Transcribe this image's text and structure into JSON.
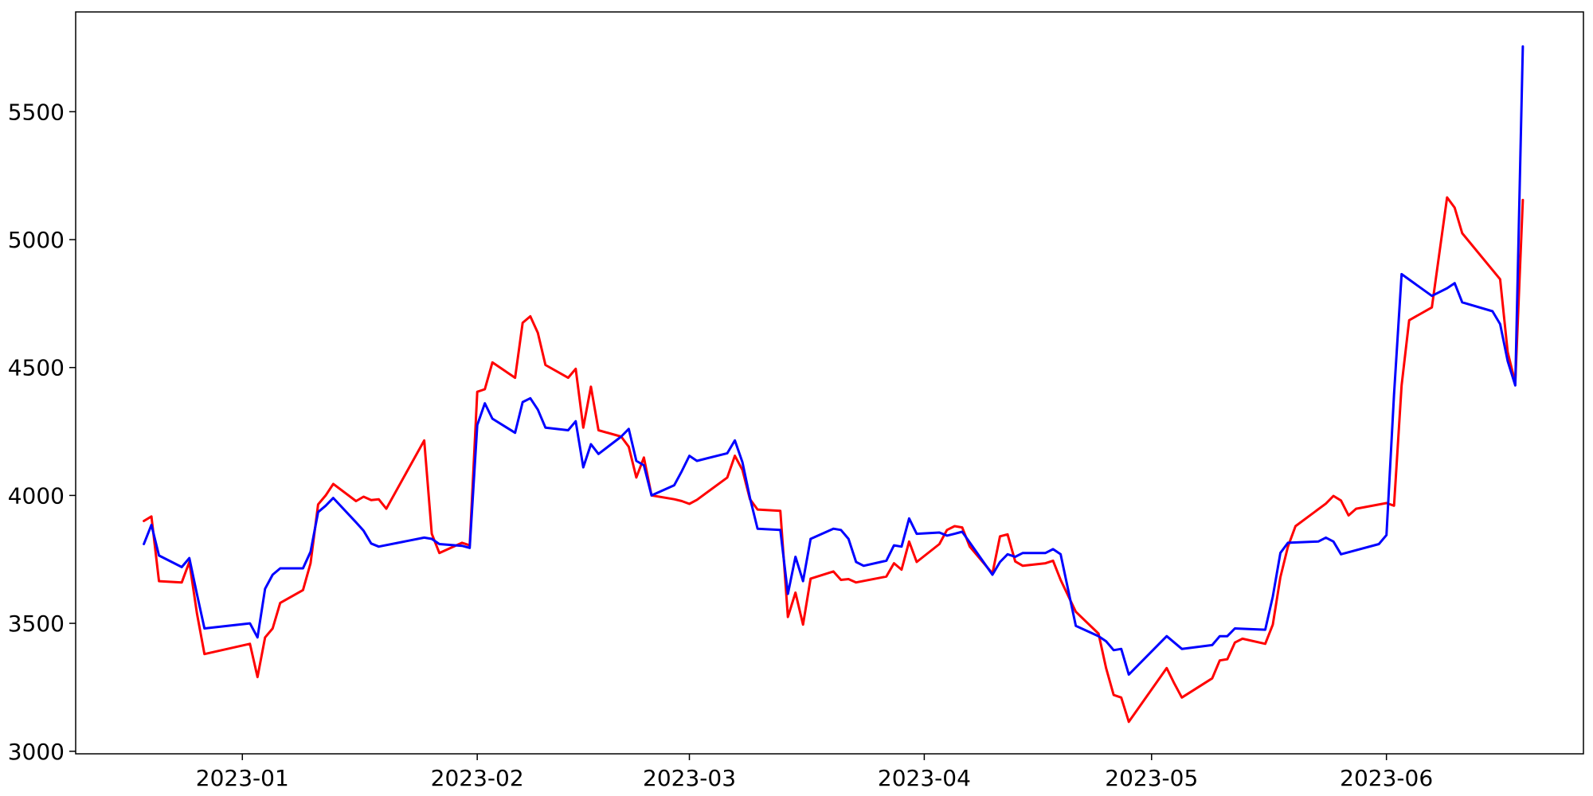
{
  "chart_data": {
    "type": "line",
    "title": "",
    "xlabel": "",
    "ylabel": "",
    "grid": false,
    "xlim": [
      "2022-12-10",
      "2023-06-27"
    ],
    "ylim": [
      2990,
      5890
    ],
    "x_ticks": [
      {
        "date": "2023-01-01",
        "label": "2023-01"
      },
      {
        "date": "2023-02-01",
        "label": "2023-02"
      },
      {
        "date": "2023-03-01",
        "label": "2023-03"
      },
      {
        "date": "2023-04-01",
        "label": "2023-04"
      },
      {
        "date": "2023-05-01",
        "label": "2023-05"
      },
      {
        "date": "2023-06-01",
        "label": "2023-06"
      }
    ],
    "y_ticks": [
      {
        "value": 3000,
        "label": "3000"
      },
      {
        "value": 3500,
        "label": "3500"
      },
      {
        "value": 4000,
        "label": "4000"
      },
      {
        "value": 4500,
        "label": "4500"
      },
      {
        "value": 5000,
        "label": "5000"
      },
      {
        "value": 5500,
        "label": "5500"
      }
    ],
    "series": [
      {
        "color": "#ff0000",
        "points": [
          [
            "2022-12-19",
            3900
          ],
          [
            "2022-12-20",
            3918
          ],
          [
            "2022-12-21",
            3665
          ],
          [
            "2022-12-24",
            3660
          ],
          [
            "2022-12-25",
            3740
          ],
          [
            "2022-12-26",
            3540
          ],
          [
            "2022-12-27",
            3380
          ],
          [
            "2023-01-02",
            3420
          ],
          [
            "2023-01-03",
            3290
          ],
          [
            "2023-01-04",
            3445
          ],
          [
            "2023-01-05",
            3480
          ],
          [
            "2023-01-06",
            3580
          ],
          [
            "2023-01-09",
            3630
          ],
          [
            "2023-01-10",
            3735
          ],
          [
            "2023-01-11",
            3965
          ],
          [
            "2023-01-12",
            4000
          ],
          [
            "2023-01-13",
            4045
          ],
          [
            "2023-01-16",
            3978
          ],
          [
            "2023-01-17",
            3995
          ],
          [
            "2023-01-18",
            3982
          ],
          [
            "2023-01-19",
            3985
          ],
          [
            "2023-01-20",
            3948
          ],
          [
            "2023-01-25",
            4215
          ],
          [
            "2023-01-26",
            3850
          ],
          [
            "2023-01-27",
            3775
          ],
          [
            "2023-01-30",
            3815
          ],
          [
            "2023-01-31",
            3805
          ],
          [
            "2023-02-01",
            4405
          ],
          [
            "2023-02-02",
            4415
          ],
          [
            "2023-02-03",
            4520
          ],
          [
            "2023-02-06",
            4460
          ],
          [
            "2023-02-07",
            4675
          ],
          [
            "2023-02-08",
            4700
          ],
          [
            "2023-02-09",
            4635
          ],
          [
            "2023-02-10",
            4510
          ],
          [
            "2023-02-13",
            4460
          ],
          [
            "2023-02-14",
            4495
          ],
          [
            "2023-02-15",
            4265
          ],
          [
            "2023-02-16",
            4425
          ],
          [
            "2023-02-17",
            4255
          ],
          [
            "2023-02-20",
            4230
          ],
          [
            "2023-02-21",
            4190
          ],
          [
            "2023-02-22",
            4070
          ],
          [
            "2023-02-23",
            4148
          ],
          [
            "2023-02-24",
            4000
          ],
          [
            "2023-02-27",
            3985
          ],
          [
            "2023-02-28",
            3978
          ],
          [
            "2023-03-01",
            3967
          ],
          [
            "2023-03-02",
            3983
          ],
          [
            "2023-03-06",
            4070
          ],
          [
            "2023-03-07",
            4155
          ],
          [
            "2023-03-08",
            4100
          ],
          [
            "2023-03-09",
            3985
          ],
          [
            "2023-03-10",
            3945
          ],
          [
            "2023-03-13",
            3940
          ],
          [
            "2023-03-14",
            3525
          ],
          [
            "2023-03-15",
            3620
          ],
          [
            "2023-03-16",
            3495
          ],
          [
            "2023-03-17",
            3675
          ],
          [
            "2023-03-20",
            3703
          ],
          [
            "2023-03-21",
            3670
          ],
          [
            "2023-03-22",
            3673
          ],
          [
            "2023-03-23",
            3660
          ],
          [
            "2023-03-27",
            3683
          ],
          [
            "2023-03-28",
            3735
          ],
          [
            "2023-03-29",
            3710
          ],
          [
            "2023-03-30",
            3820
          ],
          [
            "2023-03-31",
            3740
          ],
          [
            "2023-04-03",
            3810
          ],
          [
            "2023-04-04",
            3865
          ],
          [
            "2023-04-05",
            3880
          ],
          [
            "2023-04-06",
            3875
          ],
          [
            "2023-04-07",
            3800
          ],
          [
            "2023-04-10",
            3695
          ],
          [
            "2023-04-11",
            3840
          ],
          [
            "2023-04-12",
            3848
          ],
          [
            "2023-04-13",
            3742
          ],
          [
            "2023-04-14",
            3725
          ],
          [
            "2023-04-17",
            3735
          ],
          [
            "2023-04-18",
            3745
          ],
          [
            "2023-04-19",
            3670
          ],
          [
            "2023-04-21",
            3545
          ],
          [
            "2023-04-24",
            3460
          ],
          [
            "2023-04-25",
            3325
          ],
          [
            "2023-04-26",
            3220
          ],
          [
            "2023-04-27",
            3210
          ],
          [
            "2023-04-28",
            3115
          ],
          [
            "2023-05-03",
            3325
          ],
          [
            "2023-05-04",
            3265
          ],
          [
            "2023-05-05",
            3210
          ],
          [
            "2023-05-09",
            3285
          ],
          [
            "2023-05-10",
            3355
          ],
          [
            "2023-05-11",
            3360
          ],
          [
            "2023-05-12",
            3425
          ],
          [
            "2023-05-13",
            3440
          ],
          [
            "2023-05-16",
            3420
          ],
          [
            "2023-05-17",
            3495
          ],
          [
            "2023-05-18",
            3680
          ],
          [
            "2023-05-19",
            3800
          ],
          [
            "2023-05-20",
            3880
          ],
          [
            "2023-05-24",
            3968
          ],
          [
            "2023-05-25",
            3998
          ],
          [
            "2023-05-26",
            3980
          ],
          [
            "2023-05-27",
            3922
          ],
          [
            "2023-05-28",
            3948
          ],
          [
            "2023-06-01",
            3970
          ],
          [
            "2023-06-02",
            3960
          ],
          [
            "2023-06-03",
            4430
          ],
          [
            "2023-06-04",
            4685
          ],
          [
            "2023-06-07",
            4735
          ],
          [
            "2023-06-09",
            5165
          ],
          [
            "2023-06-10",
            5125
          ],
          [
            "2023-06-11",
            5025
          ],
          [
            "2023-06-16",
            4845
          ],
          [
            "2023-06-17",
            4560
          ],
          [
            "2023-06-18",
            4440
          ],
          [
            "2023-06-19",
            5155
          ]
        ]
      },
      {
        "color": "#0000ff",
        "points": [
          [
            "2022-12-19",
            3810
          ],
          [
            "2022-12-20",
            3885
          ],
          [
            "2022-12-21",
            3765
          ],
          [
            "2022-12-24",
            3720
          ],
          [
            "2022-12-25",
            3755
          ],
          [
            "2022-12-26",
            3615
          ],
          [
            "2022-12-27",
            3480
          ],
          [
            "2023-01-02",
            3500
          ],
          [
            "2023-01-03",
            3445
          ],
          [
            "2023-01-04",
            3635
          ],
          [
            "2023-01-05",
            3690
          ],
          [
            "2023-01-06",
            3715
          ],
          [
            "2023-01-09",
            3715
          ],
          [
            "2023-01-10",
            3780
          ],
          [
            "2023-01-11",
            3935
          ],
          [
            "2023-01-12",
            3960
          ],
          [
            "2023-01-13",
            3990
          ],
          [
            "2023-01-16",
            3895
          ],
          [
            "2023-01-17",
            3862
          ],
          [
            "2023-01-18",
            3812
          ],
          [
            "2023-01-19",
            3800
          ],
          [
            "2023-01-25",
            3835
          ],
          [
            "2023-01-26",
            3830
          ],
          [
            "2023-01-27",
            3810
          ],
          [
            "2023-01-30",
            3803
          ],
          [
            "2023-01-31",
            3795
          ],
          [
            "2023-02-01",
            4275
          ],
          [
            "2023-02-02",
            4360
          ],
          [
            "2023-02-03",
            4300
          ],
          [
            "2023-02-06",
            4245
          ],
          [
            "2023-02-07",
            4365
          ],
          [
            "2023-02-08",
            4380
          ],
          [
            "2023-02-09",
            4335
          ],
          [
            "2023-02-10",
            4265
          ],
          [
            "2023-02-13",
            4255
          ],
          [
            "2023-02-14",
            4290
          ],
          [
            "2023-02-15",
            4110
          ],
          [
            "2023-02-16",
            4200
          ],
          [
            "2023-02-17",
            4162
          ],
          [
            "2023-02-20",
            4230
          ],
          [
            "2023-02-21",
            4260
          ],
          [
            "2023-02-22",
            4135
          ],
          [
            "2023-02-23",
            4118
          ],
          [
            "2023-02-24",
            4000
          ],
          [
            "2023-02-27",
            4040
          ],
          [
            "2023-02-28",
            4095
          ],
          [
            "2023-03-01",
            4155
          ],
          [
            "2023-03-02",
            4135
          ],
          [
            "2023-03-06",
            4165
          ],
          [
            "2023-03-07",
            4215
          ],
          [
            "2023-03-08",
            4130
          ],
          [
            "2023-03-09",
            3990
          ],
          [
            "2023-03-10",
            3870
          ],
          [
            "2023-03-13",
            3865
          ],
          [
            "2023-03-14",
            3615
          ],
          [
            "2023-03-15",
            3760
          ],
          [
            "2023-03-16",
            3665
          ],
          [
            "2023-03-17",
            3830
          ],
          [
            "2023-03-20",
            3870
          ],
          [
            "2023-03-21",
            3865
          ],
          [
            "2023-03-22",
            3830
          ],
          [
            "2023-03-23",
            3740
          ],
          [
            "2023-03-24",
            3725
          ],
          [
            "2023-03-27",
            3745
          ],
          [
            "2023-03-28",
            3805
          ],
          [
            "2023-03-29",
            3800
          ],
          [
            "2023-03-30",
            3910
          ],
          [
            "2023-03-31",
            3850
          ],
          [
            "2023-04-03",
            3855
          ],
          [
            "2023-04-04",
            3843
          ],
          [
            "2023-04-05",
            3850
          ],
          [
            "2023-04-06",
            3858
          ],
          [
            "2023-04-10",
            3690
          ],
          [
            "2023-04-11",
            3740
          ],
          [
            "2023-04-12",
            3770
          ],
          [
            "2023-04-13",
            3760
          ],
          [
            "2023-04-14",
            3775
          ],
          [
            "2023-04-17",
            3775
          ],
          [
            "2023-04-18",
            3790
          ],
          [
            "2023-04-19",
            3770
          ],
          [
            "2023-04-21",
            3490
          ],
          [
            "2023-04-24",
            3450
          ],
          [
            "2023-04-25",
            3430
          ],
          [
            "2023-04-26",
            3395
          ],
          [
            "2023-04-27",
            3400
          ],
          [
            "2023-04-28",
            3300
          ],
          [
            "2023-05-03",
            3450
          ],
          [
            "2023-05-05",
            3400
          ],
          [
            "2023-05-09",
            3415
          ],
          [
            "2023-05-10",
            3450
          ],
          [
            "2023-05-11",
            3450
          ],
          [
            "2023-05-12",
            3480
          ],
          [
            "2023-05-16",
            3475
          ],
          [
            "2023-05-17",
            3605
          ],
          [
            "2023-05-18",
            3775
          ],
          [
            "2023-05-19",
            3815
          ],
          [
            "2023-05-23",
            3820
          ],
          [
            "2023-05-24",
            3835
          ],
          [
            "2023-05-25",
            3820
          ],
          [
            "2023-05-26",
            3770
          ],
          [
            "2023-05-31",
            3810
          ],
          [
            "2023-06-01",
            3845
          ],
          [
            "2023-06-02",
            4395
          ],
          [
            "2023-06-03",
            4865
          ],
          [
            "2023-06-07",
            4780
          ],
          [
            "2023-06-09",
            4810
          ],
          [
            "2023-06-10",
            4830
          ],
          [
            "2023-06-11",
            4755
          ],
          [
            "2023-06-15",
            4720
          ],
          [
            "2023-06-16",
            4670
          ],
          [
            "2023-06-17",
            4525
          ],
          [
            "2023-06-18",
            4430
          ],
          [
            "2023-06-19",
            5755
          ]
        ]
      }
    ]
  }
}
